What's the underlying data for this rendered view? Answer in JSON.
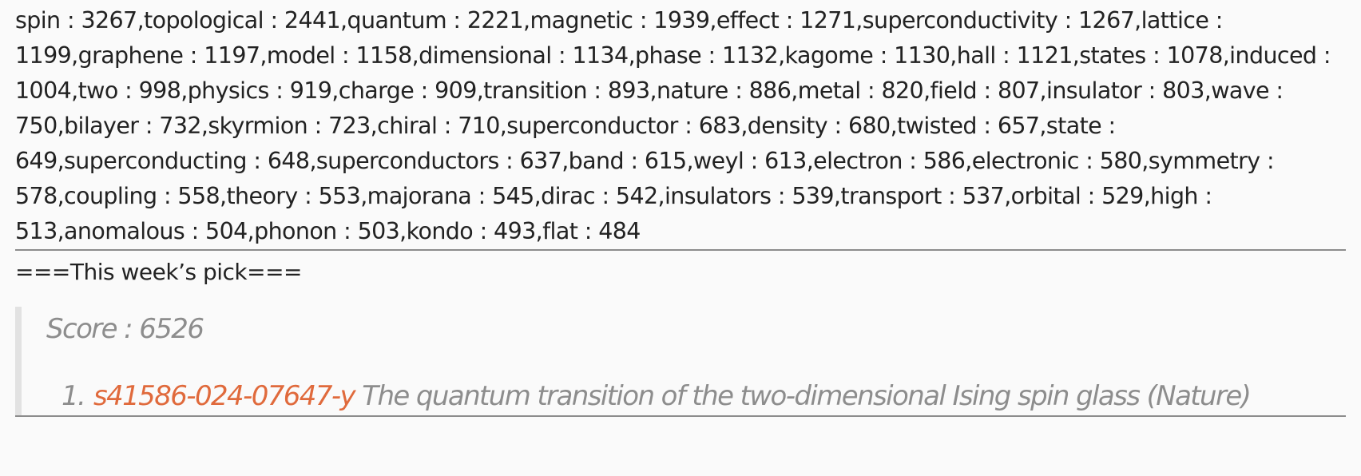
{
  "word_counts": {
    "text": "spin : 3267,topological : 2441,quantum : 2221,magnetic : 1939,effect : 1271,superconductivity : 1267,lattice : 1199,graphene : 1197,model : 1158,dimensional : 1134,phase : 1132,kagome : 1130,hall : 1121,states : 1078,induced : 1004,two : 998,physics : 919,charge : 909,transition : 893,nature : 886,metal : 820,field : 807,insulator : 803,wave : 750,bilayer : 732,skyrmion : 723,chiral : 710,superconductor : 683,density : 680,twisted : 657,state : 649,superconducting : 648,superconductors : 637,band : 615,weyl : 613,electron : 586,electronic : 580,symmetry : 578,coupling : 558,theory : 553,majorana : 545,dirac : 542,insulators : 539,transport : 537,orbital : 529,high : 513,anomalous : 504,phonon : 503,kondo : 493,flat : 484"
  },
  "weekly_pick": {
    "heading": "===This week’s pick===",
    "score": "Score : 6526",
    "items": [
      {
        "number": "1.",
        "link_text": "s41586-024-07647-y",
        "title": "The quantum transition of the two-dimensional Ising spin glass (Nature)"
      }
    ]
  },
  "colors": {
    "link": "#e06a3c",
    "quote_text": "#8d8d8d",
    "quote_border": "#e2e2e2",
    "divider": "#8c8c8c"
  }
}
